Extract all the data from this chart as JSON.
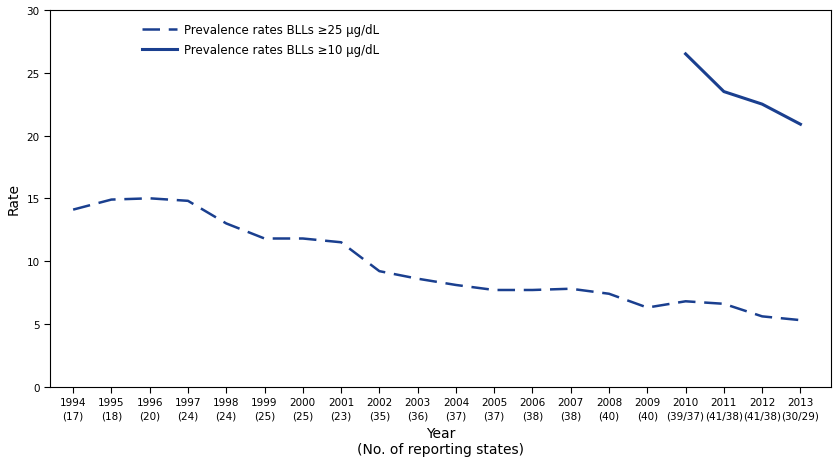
{
  "years": [
    1994,
    1995,
    1996,
    1997,
    1998,
    1999,
    2000,
    2001,
    2002,
    2003,
    2004,
    2005,
    2006,
    2007,
    2008,
    2009,
    2010,
    2011,
    2012,
    2013
  ],
  "reporting_states": [
    "(17)",
    "(18)",
    "(20)",
    "(24)",
    "(24)",
    "(25)",
    "(25)",
    "(23)",
    "(35)",
    "(36)",
    "(37)",
    "(37)",
    "(38)",
    "(38)",
    "(40)",
    "(40)",
    "(39/37)",
    "(41/38)",
    "(41/38)",
    "(30/29)"
  ],
  "dashed_values": [
    14.1,
    14.9,
    15.0,
    14.8,
    13.0,
    11.8,
    11.8,
    11.5,
    9.2,
    8.6,
    8.1,
    7.7,
    7.7,
    7.8,
    7.4,
    6.3,
    6.8,
    6.6,
    5.6,
    5.3
  ],
  "solid_years": [
    2010,
    2011,
    2012,
    2013
  ],
  "solid_values": [
    26.5,
    23.5,
    22.5,
    20.9
  ],
  "line_color": "#1a3f8f",
  "ylim": [
    0,
    30
  ],
  "yticks": [
    0,
    5,
    10,
    15,
    20,
    25,
    30
  ],
  "ylabel": "Rate",
  "xlabel_line1": "Year",
  "xlabel_line2": "(No. of reporting states)",
  "legend_dashed": "Prevalence rates BLLs ≥25 μg/dL",
  "legend_solid": "Prevalence rates BLLs ≥10 μg/dL",
  "background_color": "#ffffff",
  "legend_fontsize": 8.5,
  "axis_fontsize": 10,
  "tick_fontsize": 7.5
}
